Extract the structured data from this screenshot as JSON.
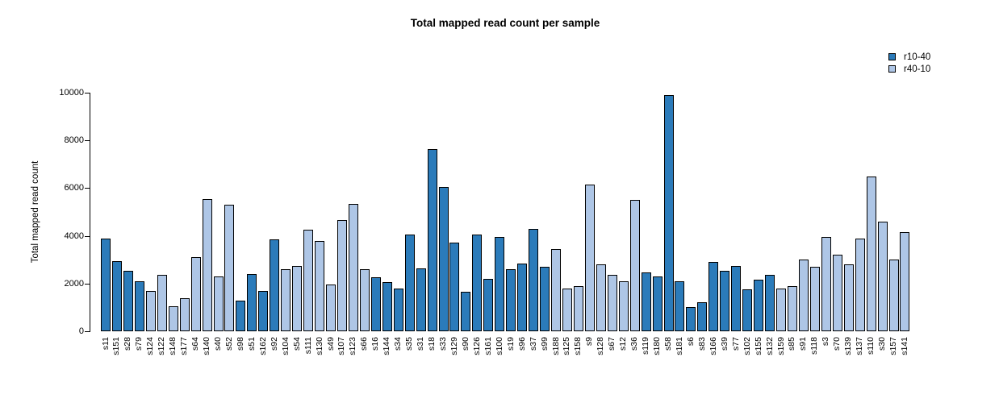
{
  "title": "Total mapped read count per sample",
  "legend": [
    {
      "label": "r10-40",
      "color": "#2b7bba"
    },
    {
      "label": "r40-10",
      "color": "#aec6e6"
    }
  ],
  "chart_data": {
    "type": "bar",
    "title": "Total mapped read count per sample",
    "xlabel": "",
    "ylabel": "Total mapped read count",
    "ylim": [
      0,
      10000
    ],
    "yticks": [
      0,
      2000,
      4000,
      6000,
      8000,
      10000
    ],
    "grid": false,
    "legend_position": "top-right",
    "series_colors": {
      "r10-40": "#2b7bba",
      "r40-10": "#aec6e6"
    },
    "bar_outline_color": "#000000",
    "bars": [
      {
        "label": "s11",
        "group": "r10-40",
        "value": 3900
      },
      {
        "label": "s151",
        "group": "r10-40",
        "value": 2950
      },
      {
        "label": "s28",
        "group": "r10-40",
        "value": 2550
      },
      {
        "label": "s79",
        "group": "r10-40",
        "value": 2100
      },
      {
        "label": "s124",
        "group": "r40-10",
        "value": 1700
      },
      {
        "label": "s122",
        "group": "r40-10",
        "value": 2350
      },
      {
        "label": "s148",
        "group": "r40-10",
        "value": 1050
      },
      {
        "label": "s177",
        "group": "r40-10",
        "value": 1400
      },
      {
        "label": "s64",
        "group": "r40-10",
        "value": 3100
      },
      {
        "label": "s140",
        "group": "r40-10",
        "value": 5550
      },
      {
        "label": "s40",
        "group": "r40-10",
        "value": 2300
      },
      {
        "label": "s52",
        "group": "r40-10",
        "value": 5300
      },
      {
        "label": "s98",
        "group": "r10-40",
        "value": 1300
      },
      {
        "label": "s51",
        "group": "r10-40",
        "value": 2400
      },
      {
        "label": "s162",
        "group": "r10-40",
        "value": 1700
      },
      {
        "label": "s92",
        "group": "r10-40",
        "value": 3850
      },
      {
        "label": "s104",
        "group": "r40-10",
        "value": 2600
      },
      {
        "label": "s54",
        "group": "r40-10",
        "value": 2750
      },
      {
        "label": "s111",
        "group": "r40-10",
        "value": 4250
      },
      {
        "label": "s130",
        "group": "r40-10",
        "value": 3800
      },
      {
        "label": "s49",
        "group": "r40-10",
        "value": 1950
      },
      {
        "label": "s107",
        "group": "r40-10",
        "value": 4650
      },
      {
        "label": "s123",
        "group": "r40-10",
        "value": 5350
      },
      {
        "label": "s66",
        "group": "r40-10",
        "value": 2600
      },
      {
        "label": "s16",
        "group": "r10-40",
        "value": 2250
      },
      {
        "label": "s144",
        "group": "r10-40",
        "value": 2050
      },
      {
        "label": "s34",
        "group": "r10-40",
        "value": 1800
      },
      {
        "label": "s35",
        "group": "r10-40",
        "value": 4050
      },
      {
        "label": "s31",
        "group": "r10-40",
        "value": 2650
      },
      {
        "label": "s18",
        "group": "r10-40",
        "value": 7650
      },
      {
        "label": "s33",
        "group": "r10-40",
        "value": 6050
      },
      {
        "label": "s129",
        "group": "r10-40",
        "value": 3700
      },
      {
        "label": "s90",
        "group": "r10-40",
        "value": 1650
      },
      {
        "label": "s126",
        "group": "r10-40",
        "value": 4050
      },
      {
        "label": "s161",
        "group": "r10-40",
        "value": 2200
      },
      {
        "label": "s100",
        "group": "r10-40",
        "value": 3950
      },
      {
        "label": "s19",
        "group": "r10-40",
        "value": 2600
      },
      {
        "label": "s96",
        "group": "r10-40",
        "value": 2850
      },
      {
        "label": "s37",
        "group": "r10-40",
        "value": 4300
      },
      {
        "label": "s99",
        "group": "r10-40",
        "value": 2700
      },
      {
        "label": "s188",
        "group": "r40-10",
        "value": 3450
      },
      {
        "label": "s125",
        "group": "r40-10",
        "value": 1800
      },
      {
        "label": "s158",
        "group": "r40-10",
        "value": 1900
      },
      {
        "label": "s9",
        "group": "r40-10",
        "value": 6150
      },
      {
        "label": "s128",
        "group": "r40-10",
        "value": 2800
      },
      {
        "label": "s67",
        "group": "r40-10",
        "value": 2350
      },
      {
        "label": "s12",
        "group": "r40-10",
        "value": 2100
      },
      {
        "label": "s36",
        "group": "r40-10",
        "value": 5500
      },
      {
        "label": "s119",
        "group": "r10-40",
        "value": 2450
      },
      {
        "label": "s180",
        "group": "r10-40",
        "value": 2300
      },
      {
        "label": "s58",
        "group": "r10-40",
        "value": 9900
      },
      {
        "label": "s181",
        "group": "r10-40",
        "value": 2100
      },
      {
        "label": "s6",
        "group": "r10-40",
        "value": 1000
      },
      {
        "label": "s83",
        "group": "r10-40",
        "value": 1200
      },
      {
        "label": "s166",
        "group": "r10-40",
        "value": 2900
      },
      {
        "label": "s39",
        "group": "r10-40",
        "value": 2550
      },
      {
        "label": "s77",
        "group": "r10-40",
        "value": 2750
      },
      {
        "label": "s102",
        "group": "r10-40",
        "value": 1750
      },
      {
        "label": "s155",
        "group": "r10-40",
        "value": 2150
      },
      {
        "label": "s132",
        "group": "r10-40",
        "value": 2350
      },
      {
        "label": "s159",
        "group": "r40-10",
        "value": 1800
      },
      {
        "label": "s85",
        "group": "r40-10",
        "value": 1900
      },
      {
        "label": "s91",
        "group": "r40-10",
        "value": 3000
      },
      {
        "label": "s118",
        "group": "r40-10",
        "value": 2700
      },
      {
        "label": "s3",
        "group": "r40-10",
        "value": 3950
      },
      {
        "label": "s70",
        "group": "r40-10",
        "value": 3200
      },
      {
        "label": "s139",
        "group": "r40-10",
        "value": 2800
      },
      {
        "label": "s137",
        "group": "r40-10",
        "value": 3900
      },
      {
        "label": "s110",
        "group": "r40-10",
        "value": 6500
      },
      {
        "label": "s30",
        "group": "r40-10",
        "value": 4600
      },
      {
        "label": "s157",
        "group": "r40-10",
        "value": 3000
      },
      {
        "label": "s141",
        "group": "r40-10",
        "value": 4150
      }
    ]
  }
}
